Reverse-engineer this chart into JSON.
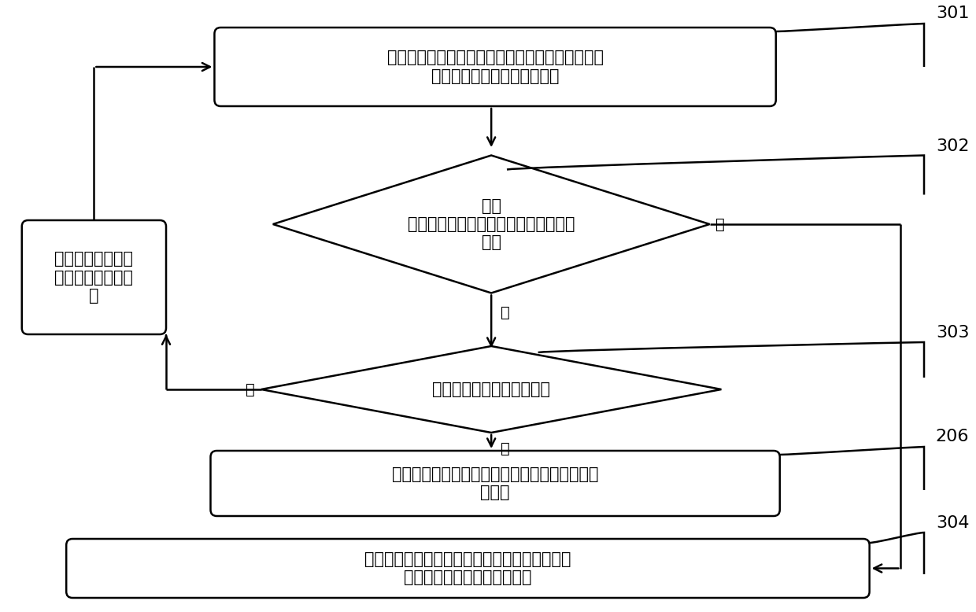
{
  "bg_color": "#ffffff",
  "fig_width": 12.4,
  "fig_height": 7.78,
  "step_label_301": "301",
  "step_label_302": "302",
  "step_label_303": "303",
  "step_label_206": "206",
  "step_label_304": "304",
  "box1_text": "根据预定电路表达式，将第一待证明定理中的表达\n式展开，得到第二待证明定理",
  "diamond1_text": "判断\n第二待证明定理与预定电路表达式是否\n一致",
  "diamond2_text": "判断是否存在待证明子定理",
  "box_left_text": "将待证明子定理确\n定为第一待证明定\n理",
  "box3_text": "当第一待证明定理成立时，确定电路满足电路安\n全属性",
  "box4_text": "当第二待证明定理与预定电路表达式不一致时，\n则确定该电路存在安全漏洞。",
  "label_no1": "否",
  "label_yes1": "是",
  "label_no2": "否",
  "label_yes2": "是",
  "font_size_main": 15,
  "font_size_label": 14,
  "font_size_step": 16
}
